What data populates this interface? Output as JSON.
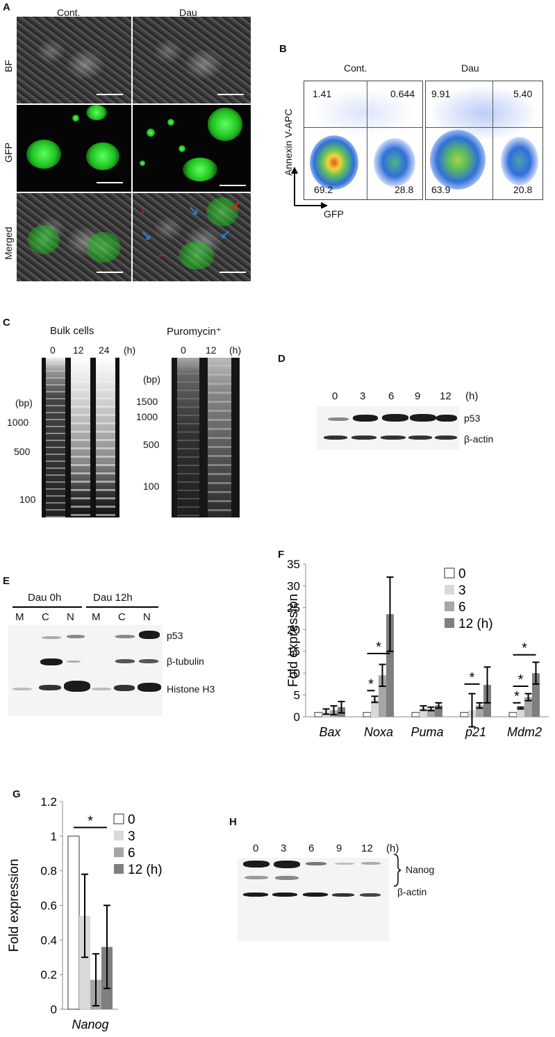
{
  "panels": {
    "A": {
      "letter": "A",
      "col_cont": "Cont.",
      "col_dau": "Dau",
      "row_bf": "BF",
      "row_gfp": "GFP",
      "row_merged": "Merged"
    },
    "B": {
      "letter": "B",
      "col_cont": "Cont.",
      "col_dau": "Dau",
      "ylabel": "Annexin V-APC",
      "xlabel": "GFP",
      "cont": {
        "ul": "1.41",
        "ur": "0.644",
        "ll": "69.2",
        "lr": "28.8"
      },
      "dau": {
        "ul": "9.91",
        "ur": "5.40",
        "ll": "63.9",
        "lr": "20.8"
      }
    },
    "C": {
      "letter": "C",
      "bulk_title": "Bulk cells",
      "bulk_times": [
        "0",
        "12",
        "24",
        "(h)"
      ],
      "bulk_bp": "(bp)",
      "bulk_markers": [
        "1000",
        "500",
        "100"
      ],
      "puro_title": "Puromycin⁺",
      "puro_times": [
        "0",
        "12",
        "(h)"
      ],
      "puro_bp": "(bp)",
      "puro_markers": [
        "1500",
        "1000",
        "500",
        "100"
      ]
    },
    "D": {
      "letter": "D",
      "times": [
        "0",
        "3",
        "6",
        "9",
        "12",
        "(h)"
      ],
      "row1": "p53",
      "row2": "β-actin"
    },
    "E": {
      "letter": "E",
      "group1": "Dau 0h",
      "group2": "Dau 12h",
      "fractions": [
        "M",
        "C",
        "N",
        "M",
        "C",
        "N"
      ],
      "row1": "p53",
      "row2": "β-tubulin",
      "row3": "Histone H3"
    },
    "F": {
      "letter": "F"
    },
    "G": {
      "letter": "G"
    },
    "H": {
      "letter": "H",
      "times": [
        "0",
        "3",
        "6",
        "9",
        "12",
        "(h)"
      ],
      "row1": "Nanog",
      "row2": "β-actin"
    }
  },
  "chart_data": [
    {
      "panel": "F",
      "type": "bar",
      "ylabel": "Fold expression",
      "ylim": [
        0,
        35
      ],
      "yticks": [
        "0",
        "5",
        "10",
        "15",
        "20",
        "25",
        "30",
        "35"
      ],
      "categories": [
        "Bax",
        "Noxa",
        "Puma",
        "p21",
        "Mdm2"
      ],
      "legend": [
        "0",
        "3",
        "6",
        "12 (h)"
      ],
      "colors": [
        "#ffffff",
        "#d9d9d9",
        "#a6a6a6",
        "#7f7f7f"
      ],
      "series": [
        {
          "name": "0",
          "values": [
            1,
            1,
            1,
            1,
            1
          ],
          "err": [
            0,
            0,
            0,
            0,
            0
          ]
        },
        {
          "name": "3",
          "values": [
            1.2,
            4.0,
            2.0,
            1.5,
            2.0
          ],
          "err": [
            0.6,
            0.7,
            0.5,
            3.8,
            0.2
          ]
        },
        {
          "name": "6",
          "values": [
            1.5,
            9.5,
            1.8,
            2.6,
            4.5
          ],
          "err": [
            1.0,
            2.5,
            0.4,
            0.6,
            0.8
          ]
        },
        {
          "name": "12 (h)",
          "values": [
            2.2,
            23.5,
            2.6,
            7.3,
            10.0
          ],
          "err": [
            1.3,
            8.5,
            0.6,
            4.1,
            2.5
          ]
        }
      ],
      "significance": [
        "*",
        "*",
        "*",
        "*",
        "*",
        "*"
      ]
    },
    {
      "panel": "G",
      "type": "bar",
      "ylabel": "Fold expression",
      "ylim": [
        0,
        1.2
      ],
      "yticks": [
        "0",
        "0.2",
        "0.4",
        "0.6",
        "0.8",
        "1",
        "1.2"
      ],
      "categories": [
        "Nanog"
      ],
      "legend": [
        "0",
        "3",
        "6",
        "12 (h)"
      ],
      "colors": [
        "#ffffff",
        "#d9d9d9",
        "#a6a6a6",
        "#7f7f7f"
      ],
      "series": [
        {
          "name": "0",
          "values": [
            1.0
          ],
          "err": [
            0
          ]
        },
        {
          "name": "3",
          "values": [
            0.54
          ],
          "err": [
            0.24
          ]
        },
        {
          "name": "6",
          "values": [
            0.17
          ],
          "err": [
            0.15
          ]
        },
        {
          "name": "12 (h)",
          "values": [
            0.36
          ],
          "err": [
            0.24
          ]
        }
      ],
      "significance": [
        "*"
      ]
    }
  ]
}
